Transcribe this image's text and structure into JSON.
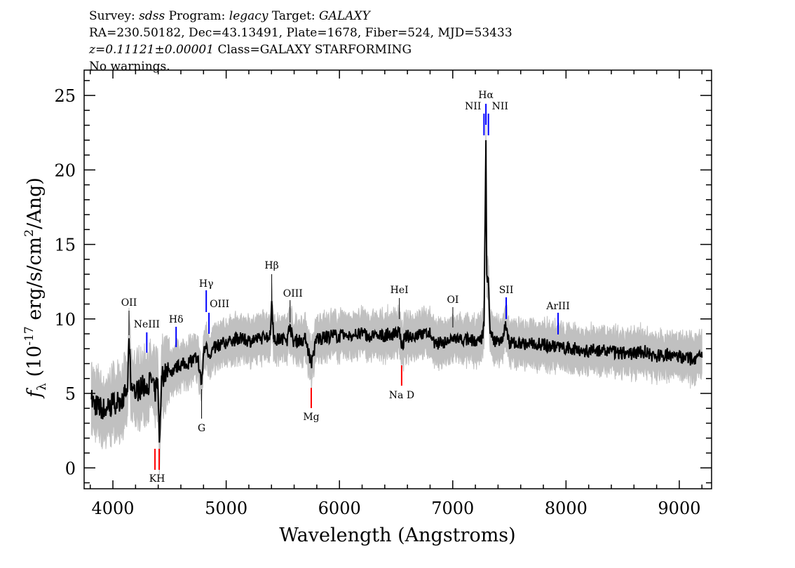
{
  "header": {
    "survey_label": "Survey:",
    "survey": "sdss",
    "program_label": "Program:",
    "program": "legacy",
    "target_label": "Target:",
    "target": "GALAXY",
    "line2": "RA=230.50182, Dec=43.13491, Plate=1678, Fiber=524, MJD=53433",
    "redshift": "z=0.11121±0.00001",
    "class": "Class=GALAXY STARFORMING",
    "warnings": "No warnings."
  },
  "chart_data": {
    "type": "line",
    "xlabel": "Wavelength (Angstroms)",
    "ylabel": "f_λ (10^-17 erg/s/cm^2/Ang)",
    "xlim": [
      3746,
      9285
    ],
    "ylim": [
      -1.4,
      26.7
    ],
    "xticks": [
      4000,
      5000,
      6000,
      7000,
      8000,
      9000
    ],
    "yticks": [
      0,
      5,
      10,
      15,
      20,
      25
    ],
    "grid": false,
    "colors": {
      "spectrum": "#000000",
      "error_band": "#c0c0c0",
      "emission_marker": "#0000ff",
      "absorption_marker": "#ff0000",
      "neutral_marker": "#000000"
    },
    "series": [
      {
        "x": [
          3810,
          3850,
          3900,
          3950,
          4000,
          4050,
          4100,
          4130,
          4142,
          4160,
          4200,
          4250,
          4300,
          4350,
          4371,
          4395,
          4410,
          4430,
          4500,
          4550,
          4600,
          4650,
          4700,
          4750,
          4783,
          4800,
          4824,
          4850,
          4900,
          4950,
          5000,
          5050,
          5100,
          5150,
          5200,
          5250,
          5300,
          5350,
          5390,
          5402,
          5420,
          5450,
          5500,
          5540,
          5564,
          5590,
          5650,
          5700,
          5751,
          5800,
          5850,
          5900,
          5950,
          6000,
          6050,
          6100,
          6150,
          6200,
          6250,
          6300,
          6350,
          6400,
          6450,
          6500,
          6529,
          6549,
          6580,
          6650,
          6700,
          6750,
          6800,
          6850,
          6900,
          6950,
          7000,
          7050,
          7100,
          7150,
          7200,
          7250,
          7276,
          7293,
          7300,
          7315,
          7330,
          7360,
          7400,
          7440,
          7464,
          7480,
          7500,
          7550,
          7600,
          7650,
          7700,
          7750,
          7800,
          7850,
          7900,
          7950,
          8000,
          8050,
          8100,
          8150,
          8200,
          8250,
          8300,
          8350,
          8400,
          8450,
          8500,
          8550,
          8600,
          8650,
          8700,
          8750,
          8800,
          8850,
          8900,
          8950,
          9000,
          9050,
          9100,
          9150,
          9200
        ],
        "y": [
          4.6,
          4.2,
          4.0,
          3.9,
          4.3,
          4.5,
          4.8,
          5.2,
          8.7,
          5.3,
          5.1,
          5.4,
          5.6,
          5.9,
          5.0,
          6.0,
          1.7,
          6.2,
          6.4,
          6.7,
          6.9,
          7.0,
          7.2,
          7.4,
          5.6,
          7.6,
          8.3,
          7.6,
          8.1,
          8.3,
          8.4,
          8.5,
          8.7,
          8.6,
          8.5,
          8.6,
          8.7,
          8.8,
          8.9,
          11.2,
          8.8,
          8.6,
          8.7,
          8.6,
          9.6,
          8.5,
          8.6,
          8.6,
          7.0,
          8.7,
          8.7,
          8.8,
          8.9,
          8.8,
          8.9,
          8.9,
          8.9,
          9.0,
          8.9,
          8.8,
          8.8,
          8.9,
          9.0,
          9.0,
          9.1,
          8.0,
          8.8,
          8.9,
          9.0,
          9.0,
          9.0,
          8.3,
          8.4,
          8.5,
          8.6,
          8.7,
          8.6,
          8.6,
          8.5,
          8.5,
          9.5,
          22.0,
          13.0,
          12.5,
          9.0,
          8.6,
          8.5,
          8.5,
          9.5,
          9.3,
          8.4,
          8.4,
          8.3,
          8.3,
          8.4,
          8.3,
          8.3,
          8.2,
          8.2,
          8.1,
          8.0,
          8.0,
          8.0,
          7.9,
          7.8,
          7.9,
          7.9,
          7.8,
          7.8,
          7.7,
          7.7,
          7.7,
          7.7,
          7.8,
          7.8,
          7.6,
          7.5,
          7.6,
          7.6,
          7.5,
          7.5,
          7.4,
          7.3,
          7.4,
          7.4
        ],
        "error": 1.0
      }
    ],
    "line_markers": [
      {
        "label": "OII",
        "wavelength": 4142,
        "kind": "neutral"
      },
      {
        "label": "NeIII",
        "wavelength": 4299,
        "kind": "emission"
      },
      {
        "label": "Hδ",
        "wavelength": 4558,
        "kind": "emission"
      },
      {
        "label": "Hγ",
        "wavelength": 4824,
        "kind": "emission"
      },
      {
        "label": "OIII",
        "wavelength": 4848,
        "kind": "emission"
      },
      {
        "label": "Hβ",
        "wavelength": 5402,
        "kind": "neutral"
      },
      {
        "label": "OIII",
        "wavelength": 5564,
        "kind": "neutral"
      },
      {
        "label": "HeI",
        "wavelength": 6529,
        "kind": "neutral"
      },
      {
        "label": "OI",
        "wavelength": 7001,
        "kind": "neutral"
      },
      {
        "label": "NII",
        "wavelength": 7276,
        "kind": "emission"
      },
      {
        "label": "Hα",
        "wavelength": 7293,
        "kind": "emission"
      },
      {
        "label": "NII",
        "wavelength": 7315,
        "kind": "emission"
      },
      {
        "label": "SII",
        "wavelength": 7472,
        "kind": "emission"
      },
      {
        "label": "ArIII",
        "wavelength": 7930,
        "kind": "emission"
      },
      {
        "label": "KH",
        "wavelength": 4390,
        "kind": "absorption"
      },
      {
        "label": "G",
        "wavelength": 4783,
        "kind": "neutral_abs"
      },
      {
        "label": "Mg",
        "wavelength": 5751,
        "kind": "absorption"
      },
      {
        "label": "Na D",
        "wavelength": 6549,
        "kind": "absorption"
      }
    ]
  }
}
